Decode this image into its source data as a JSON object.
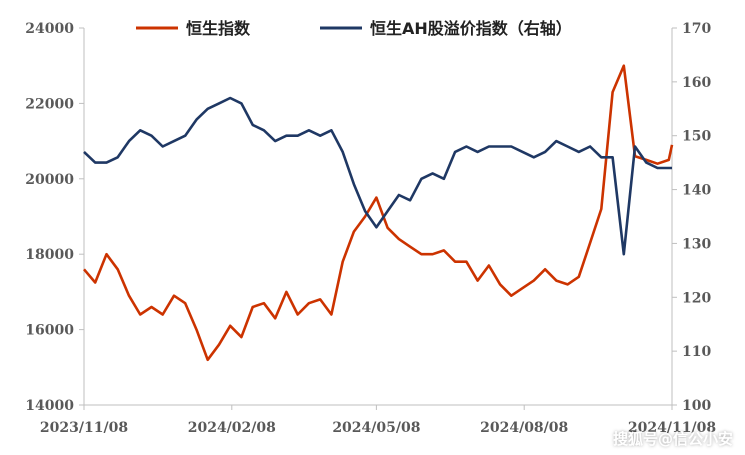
{
  "chart_data": {
    "type": "line",
    "x": [
      "2023/11/08",
      "2023/11/15",
      "2023/11/22",
      "2023/11/29",
      "2023/12/06",
      "2023/12/13",
      "2023/12/20",
      "2023/12/27",
      "2024/01/03",
      "2024/01/10",
      "2024/01/17",
      "2024/01/24",
      "2024/01/31",
      "2024/02/07",
      "2024/02/14",
      "2024/02/21",
      "2024/02/28",
      "2024/03/06",
      "2024/03/13",
      "2024/03/20",
      "2024/03/27",
      "2024/04/03",
      "2024/04/10",
      "2024/04/17",
      "2024/04/24",
      "2024/05/01",
      "2024/05/08",
      "2024/05/15",
      "2024/05/22",
      "2024/05/29",
      "2024/06/05",
      "2024/06/12",
      "2024/06/19",
      "2024/06/26",
      "2024/07/03",
      "2024/07/10",
      "2024/07/17",
      "2024/07/24",
      "2024/07/31",
      "2024/08/07",
      "2024/08/14",
      "2024/08/21",
      "2024/08/28",
      "2024/09/04",
      "2024/09/11",
      "2024/09/18",
      "2024/09/25",
      "2024/10/02",
      "2024/10/09",
      "2024/10/16",
      "2024/10/23",
      "2024/10/30",
      "2024/11/06",
      "2024/11/08"
    ],
    "series": [
      {
        "name": "恒生指数",
        "axis": "left",
        "color": "#cc3300",
        "values": [
          17600,
          17250,
          18000,
          17600,
          16900,
          16400,
          16600,
          16400,
          16900,
          16700,
          16000,
          15200,
          15600,
          16100,
          15800,
          16600,
          16700,
          16300,
          17000,
          16400,
          16700,
          16800,
          16400,
          17800,
          18600,
          19000,
          19500,
          18700,
          18400,
          18200,
          18000,
          18000,
          18100,
          17800,
          17800,
          17300,
          17700,
          17200,
          16900,
          17100,
          17300,
          17600,
          17300,
          17200,
          17400,
          18300,
          19200,
          22300,
          23000,
          20600,
          20500,
          20400,
          20500,
          20900
        ]
      },
      {
        "name": "恒生AH股溢价指数（右轴）",
        "axis": "right",
        "color": "#1f3864",
        "values": [
          147,
          145,
          145,
          146,
          149,
          151,
          150,
          148,
          149,
          150,
          153,
          155,
          156,
          157,
          156,
          152,
          151,
          149,
          150,
          150,
          151,
          150,
          151,
          147,
          141,
          136,
          133,
          136,
          139,
          138,
          142,
          143,
          142,
          147,
          148,
          147,
          148,
          148,
          148,
          147,
          146,
          147,
          149,
          148,
          147,
          148,
          146,
          146,
          128,
          148,
          145,
          144,
          144,
          144
        ]
      }
    ],
    "title": "",
    "ylim_left": [
      14000,
      24000
    ],
    "ylim_right": [
      100,
      170
    ],
    "yticks_left": [
      "14000",
      "16000",
      "18000",
      "20000",
      "22000",
      "24000"
    ],
    "yticks_right": [
      "100",
      "110",
      "120",
      "130",
      "140",
      "150",
      "160",
      "170"
    ],
    "xticks": [
      "2023/11/08",
      "2024/02/08",
      "2024/05/08",
      "2024/08/08",
      "2024/11/08"
    ],
    "legend_position": "top-center",
    "grid": false
  },
  "watermark": "搜狐号@信公小安"
}
